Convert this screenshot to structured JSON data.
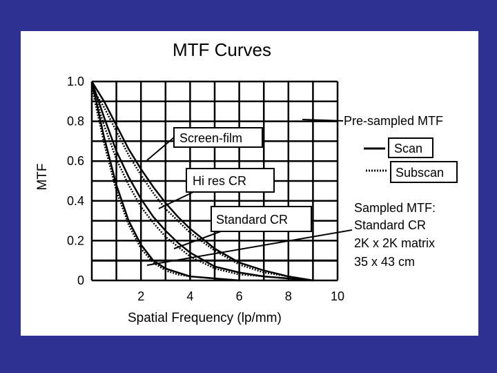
{
  "chart_data": {
    "type": "line",
    "title": "MTF Curves",
    "xlabel": "Spatial Frequency (lp/mm)",
    "ylabel": "MTF",
    "xlim": [
      0,
      10
    ],
    "ylim": [
      0,
      1.0
    ],
    "xticks": [
      2,
      4,
      6,
      8,
      10
    ],
    "xtick_labels": [
      "2",
      "4",
      "6",
      "8",
      "10"
    ],
    "yticks": [
      0,
      0.2,
      0.4,
      0.6,
      0.8,
      1.0
    ],
    "ytick_labels": [
      "0",
      "0.2",
      "0.4",
      "0.6",
      "0.8",
      "1.0"
    ],
    "grid": true,
    "series": [
      {
        "group": "Screen-film",
        "style": "Scan",
        "x": [
          0,
          0.5,
          1,
          1.5,
          2,
          2.5,
          3,
          3.5,
          4,
          5,
          6,
          7,
          8,
          9
        ],
        "y": [
          1.0,
          0.9,
          0.78,
          0.66,
          0.56,
          0.47,
          0.39,
          0.32,
          0.26,
          0.16,
          0.09,
          0.05,
          0.02,
          0.0
        ]
      },
      {
        "group": "Screen-film",
        "style": "Subscan",
        "x": [
          0,
          0.5,
          1,
          1.5,
          2,
          2.5,
          3,
          3.5,
          4,
          5,
          6,
          7,
          8,
          9
        ],
        "y": [
          0.97,
          0.87,
          0.75,
          0.63,
          0.53,
          0.44,
          0.36,
          0.3,
          0.24,
          0.15,
          0.08,
          0.04,
          0.02,
          0.0
        ]
      },
      {
        "group": "Hi res CR",
        "style": "Scan",
        "x": [
          0,
          0.5,
          1,
          1.5,
          2,
          2.5,
          3,
          3.5,
          4,
          5,
          6,
          7,
          8,
          9
        ],
        "y": [
          1.0,
          0.82,
          0.65,
          0.52,
          0.41,
          0.32,
          0.25,
          0.19,
          0.14,
          0.07,
          0.04,
          0.02,
          0.01,
          0.0
        ]
      },
      {
        "group": "Hi res CR",
        "style": "Subscan",
        "x": [
          0,
          0.5,
          1,
          1.5,
          2,
          2.5,
          3,
          3.5,
          4,
          5,
          6,
          7,
          8,
          9
        ],
        "y": [
          0.98,
          0.78,
          0.61,
          0.48,
          0.37,
          0.29,
          0.22,
          0.17,
          0.12,
          0.06,
          0.03,
          0.02,
          0.01,
          0.0
        ]
      },
      {
        "group": "Standard CR",
        "style": "Scan",
        "x": [
          0,
          0.5,
          1,
          1.5,
          2,
          2.5,
          3,
          3.5,
          4,
          5,
          6
        ],
        "y": [
          1.0,
          0.72,
          0.48,
          0.3,
          0.18,
          0.1,
          0.06,
          0.04,
          0.02,
          0.01,
          0.0
        ]
      },
      {
        "group": "Standard CR",
        "style": "Subscan",
        "x": [
          0,
          0.5,
          1,
          1.5,
          2,
          2.5,
          3,
          3.5,
          4,
          5,
          6
        ],
        "y": [
          0.97,
          0.69,
          0.45,
          0.28,
          0.16,
          0.09,
          0.05,
          0.03,
          0.02,
          0.01,
          0.0
        ]
      }
    ],
    "horizontal_lines": [
      {
        "y": 0.1
      }
    ],
    "annotations": {
      "screen_film": "Screen-film",
      "hires_cr": "Hi res  CR",
      "standard_cr": "Standard CR"
    },
    "legend": {
      "title": "Pre-sampled MTF",
      "scan": "Scan",
      "subscan": "Subscan"
    },
    "sampled_note": {
      "line1": "Sampled MTF:",
      "line2": "Standard CR",
      "line3": "2K x 2K matrix",
      "line4": "35 x 43 cm"
    }
  }
}
